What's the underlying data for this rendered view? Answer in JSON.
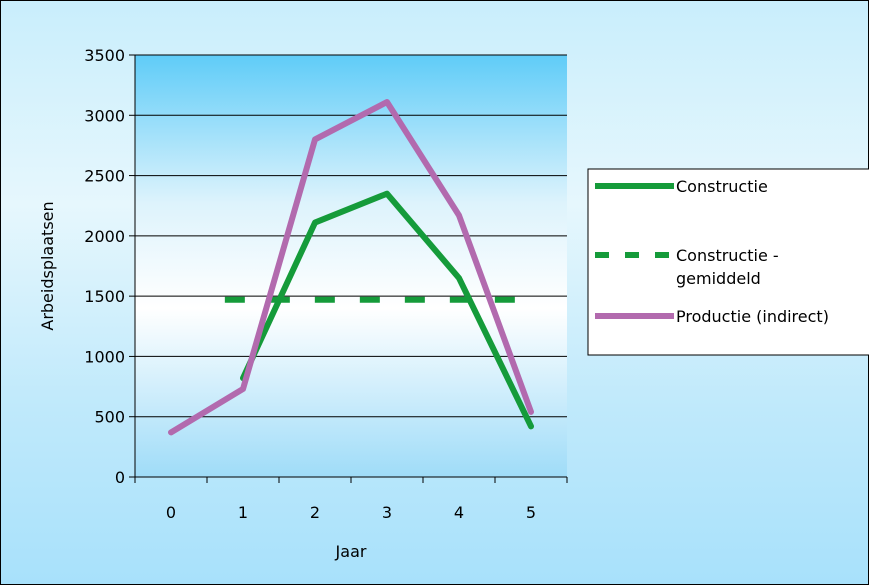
{
  "chart_data": {
    "type": "line",
    "xlabel": "Jaar",
    "ylabel": "Arbeidsplaatsen",
    "categories": [
      "0",
      "1",
      "2",
      "3",
      "4",
      "5"
    ],
    "ylim": [
      0,
      3500
    ],
    "yticks": [
      0,
      500,
      1000,
      1500,
      2000,
      2500,
      3000,
      3500
    ],
    "grid": "horizontal",
    "legend_position": "right",
    "series": [
      {
        "name": "Constructie",
        "color": "#159b3a",
        "style": "solid",
        "points": [
          [
            1,
            820
          ],
          [
            2,
            2110
          ],
          [
            3,
            2350
          ],
          [
            4,
            1650
          ],
          [
            5,
            420
          ]
        ]
      },
      {
        "name": "Constructie - gemiddeld",
        "color": "#159b3a",
        "style": "dashed",
        "points": [
          [
            1,
            1470
          ],
          [
            2,
            1470
          ],
          [
            3,
            1470
          ],
          [
            4,
            1470
          ],
          [
            5,
            1470
          ]
        ]
      },
      {
        "name": "Productie (indirect)",
        "color": "#b26aae",
        "style": "solid",
        "points": [
          [
            0,
            370
          ],
          [
            1,
            730
          ],
          [
            2,
            2800
          ],
          [
            3,
            3110
          ],
          [
            4,
            2170
          ],
          [
            5,
            540
          ]
        ]
      }
    ],
    "legend": [
      {
        "lines": [
          "Constructie"
        ]
      },
      {
        "lines": [
          "Constructie -",
          "gemiddeld"
        ]
      },
      {
        "lines": [
          "Productie (indirect)"
        ]
      }
    ]
  }
}
